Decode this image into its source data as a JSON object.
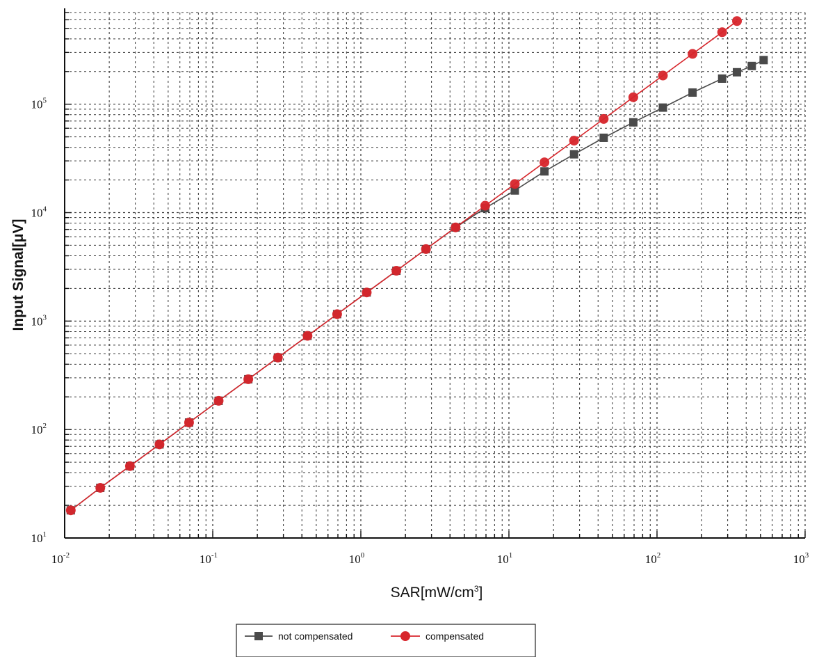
{
  "chart_data": {
    "type": "line",
    "xscale": "log",
    "yscale": "log",
    "xlim": [
      0.01,
      1000
    ],
    "ylim": [
      10,
      700000
    ],
    "grid": true,
    "legend_position": "bottom-center",
    "xlabel": {
      "base": "SAR[mW/cm",
      "sup": "3",
      "tail": "]"
    },
    "ylabel": "Input Signal[μV]",
    "x_ticks": [
      {
        "base": "10",
        "exp": "-2",
        "value": 0.01
      },
      {
        "base": "10",
        "exp": "-1",
        "value": 0.1
      },
      {
        "base": "10",
        "exp": "0",
        "value": 1
      },
      {
        "base": "10",
        "exp": "1",
        "value": 10
      },
      {
        "base": "10",
        "exp": "2",
        "value": 100
      },
      {
        "base": "10",
        "exp": "3",
        "value": 1000
      }
    ],
    "y_ticks": [
      {
        "base": "10",
        "exp": "1",
        "value": 10
      },
      {
        "base": "10",
        "exp": "2",
        "value": 100
      },
      {
        "base": "10",
        "exp": "3",
        "value": 1000
      },
      {
        "base": "10",
        "exp": "4",
        "value": 10000
      },
      {
        "base": "10",
        "exp": "5",
        "value": 100000
      }
    ],
    "series": [
      {
        "name": "not compensated",
        "color": "#4a4a4a",
        "marker": "square",
        "x": [
          0.011,
          0.0174,
          0.0276,
          0.0437,
          0.0692,
          0.1096,
          0.1738,
          0.2754,
          0.4365,
          0.6918,
          1.096,
          1.738,
          2.754,
          4.365,
          6.918,
          10.96,
          17.38,
          27.54,
          43.65,
          69.18,
          109.6,
          173.8,
          275.4,
          346.7,
          436.5,
          524.8
        ],
        "y": [
          18,
          29,
          46,
          73,
          116,
          184,
          291,
          461,
          731,
          1159,
          1837,
          2910,
          4613,
          7300,
          11000,
          16000,
          24000,
          34500,
          49000,
          68000,
          93000,
          128000,
          172000,
          197000,
          225000,
          255000
        ]
      },
      {
        "name": "compensated",
        "color": "#d7252b",
        "marker": "circle",
        "x": [
          0.011,
          0.0174,
          0.0276,
          0.0437,
          0.0692,
          0.1096,
          0.1738,
          0.2754,
          0.4365,
          0.6918,
          1.096,
          1.738,
          2.754,
          4.365,
          6.918,
          10.96,
          17.38,
          27.54,
          43.65,
          69.18,
          109.6,
          173.8,
          275.4,
          346.7
        ],
        "y": [
          18,
          29,
          46,
          73,
          116,
          184,
          291,
          461,
          731,
          1159,
          1837,
          2910,
          4613,
          7313,
          11590,
          18370,
          29100,
          46100,
          73100,
          115900,
          183700,
          291000,
          461000,
          584000
        ]
      }
    ]
  }
}
